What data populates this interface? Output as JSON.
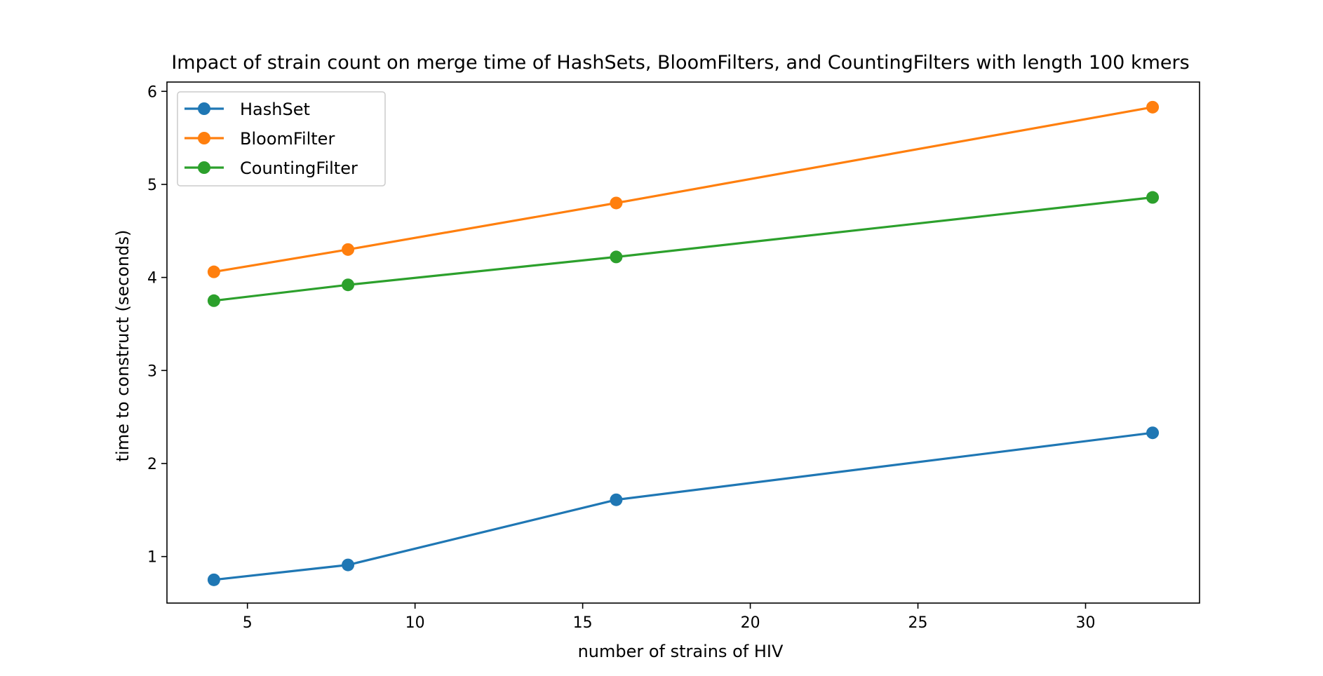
{
  "chart_data": {
    "type": "line",
    "title": "Impact of strain count on merge time of HashSets, BloomFilters, and CountingFilters with length 100 kmers",
    "xlabel": "number of strains of HIV",
    "ylabel": "time to construct (seconds)",
    "x": [
      4,
      8,
      16,
      32
    ],
    "xlim": [
      2.6,
      33.4
    ],
    "ylim": [
      0.5,
      6.1
    ],
    "xticks": [
      5,
      10,
      15,
      20,
      25,
      30
    ],
    "yticks": [
      1,
      2,
      3,
      4,
      5,
      6
    ],
    "xtick_labels": [
      "5",
      "10",
      "15",
      "20",
      "25",
      "30"
    ],
    "ytick_labels": [
      "1",
      "2",
      "3",
      "4",
      "5",
      "6"
    ],
    "grid": false,
    "legend_position": "top-left",
    "series": [
      {
        "name": "HashSet",
        "color": "#1f77b4",
        "values": [
          0.75,
          0.91,
          1.61,
          2.33
        ]
      },
      {
        "name": "BloomFilter",
        "color": "#ff7f0e",
        "values": [
          4.06,
          4.3,
          4.8,
          5.83
        ]
      },
      {
        "name": "CountingFilter",
        "color": "#2ca02c",
        "values": [
          3.75,
          3.92,
          4.22,
          4.86
        ]
      }
    ]
  }
}
